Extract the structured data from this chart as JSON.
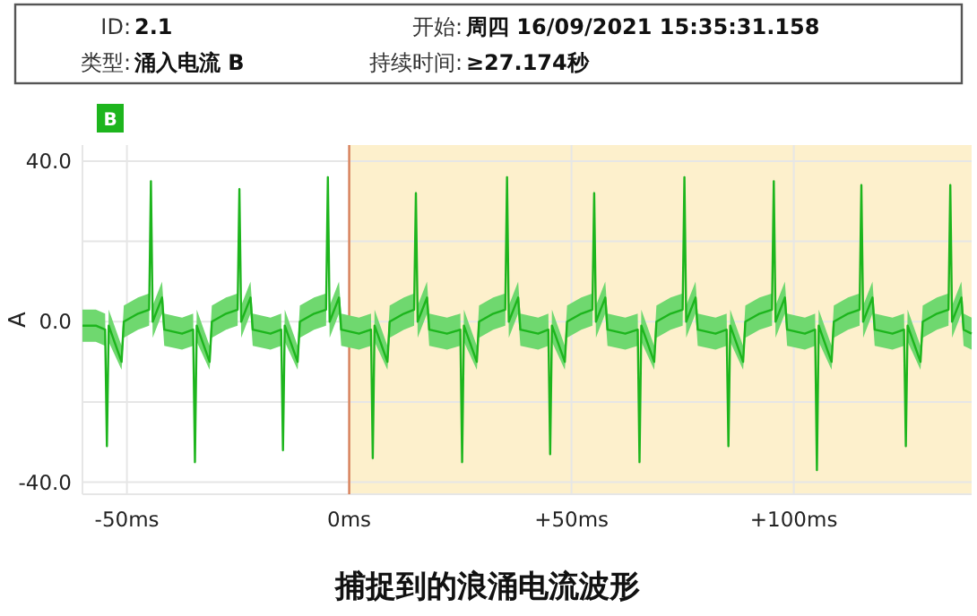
{
  "chart_data": {
    "type": "line",
    "ylabel": "A",
    "annotations": [
      "ID: **2.1**",
      "开始: **周四 16/09/2021 15:35:31.158**",
      "类型: **涌入电流 B**",
      "持续时间: **≥27.174秒**",
      "捕捉到的浪涌电流波形"
    ],
    "xlim": [
      -60,
      140
    ],
    "ylim": [
      -43,
      44
    ],
    "xticks": [
      {
        "value": -50,
        "label": "-50ms"
      },
      {
        "value": 0,
        "label": "0ms"
      },
      {
        "value": 50,
        "label": "+50ms"
      },
      {
        "value": 100,
        "label": "+100ms"
      }
    ],
    "yticks": [
      {
        "value": 40,
        "label": "40.0"
      },
      {
        "value": 20,
        "label": null
      },
      {
        "value": 0,
        "label": "0.0"
      },
      {
        "value": -20,
        "label": null
      },
      {
        "value": -40,
        "label": "-40.0"
      }
    ],
    "grid": true,
    "legend": "top left",
    "bands": [
      {
        "axis": "x",
        "from": 0,
        "to": 140,
        "color": "#fdf0cc"
      }
    ],
    "ref_lines": [
      {
        "axis": "x",
        "value": 0,
        "color": "#d9805a"
      }
    ],
    "x": [
      -60,
      -57,
      -54.9,
      -54.5,
      -54.1,
      -51.2,
      -50.7,
      -47.5,
      -45.0,
      -44.6,
      -44.2,
      -42.1,
      -41.6,
      -37.6,
      -35.1,
      -34.7,
      -34.3,
      -31.4,
      -30.9,
      -27.7,
      -25.1,
      -24.7,
      -24.3,
      -22.2,
      -21.7,
      -17.7,
      -15.3,
      -14.9,
      -14.5,
      -11.6,
      -11.1,
      -7.9,
      -5.2,
      -4.8,
      -4.4,
      -2.3,
      -1.8,
      2.2,
      4.9,
      5.3,
      5.7,
      8.6,
      9.1,
      12.3,
      14.6,
      15.0,
      15.4,
      17.5,
      18.0,
      22.0,
      25.0,
      25.4,
      25.8,
      28.7,
      29.2,
      32.4,
      35.1,
      35.5,
      35.9,
      38.0,
      38.5,
      42.5,
      44.8,
      45.2,
      45.6,
      48.5,
      49.0,
      52.2,
      54.7,
      55.1,
      55.5,
      57.6,
      58.1,
      62.1,
      64.9,
      65.3,
      65.7,
      68.6,
      69.1,
      72.3,
      75.0,
      75.4,
      75.8,
      77.9,
      78.4,
      82.4,
      84.9,
      85.3,
      85.7,
      88.6,
      89.1,
      92.3,
      95.1,
      95.5,
      95.9,
      98.0,
      98.5,
      102.5,
      104.8,
      105.2,
      105.6,
      108.5,
      109.0,
      112.2,
      114.8,
      115.2,
      115.6,
      117.7,
      118.2,
      122.2,
      124.8,
      125.2,
      125.6,
      128.5,
      129.0,
      132.2,
      134.8,
      135.2,
      135.6,
      137.7,
      138.2,
      140
    ],
    "series": [
      {
        "name": "B",
        "color": "#1db51d",
        "values": [
          -1,
          -1,
          -2,
          -31,
          -1,
          -10,
          0,
          2,
          3,
          35,
          0,
          6,
          -2,
          -3,
          -2,
          -35,
          -1,
          -10,
          0,
          2,
          3,
          33,
          0,
          6,
          -2,
          -3,
          -2,
          -32,
          -1,
          -10,
          0,
          2,
          3,
          36,
          0,
          6,
          -2,
          -3,
          -2,
          -34,
          -1,
          -10,
          0,
          2,
          3,
          32,
          0,
          6,
          -2,
          -3,
          -2,
          -35,
          -1,
          -10,
          0,
          2,
          3,
          36,
          0,
          6,
          -2,
          -3,
          -2,
          -33,
          -1,
          -10,
          0,
          2,
          3,
          32,
          0,
          6,
          -2,
          -3,
          -2,
          -35,
          -1,
          -10,
          0,
          2,
          3,
          36,
          0,
          6,
          -2,
          -3,
          -2,
          -31,
          -1,
          -10,
          0,
          2,
          3,
          35,
          0,
          6,
          -2,
          -3,
          -2,
          -37,
          -1,
          -10,
          0,
          2,
          3,
          34,
          0,
          6,
          -2,
          -3,
          -2,
          -31,
          -1,
          -10,
          0,
          2,
          3,
          34,
          0,
          6,
          -2,
          -3
        ],
        "lower": [
          -5,
          -5,
          -6,
          -32,
          -5,
          -12,
          -4,
          -2,
          -1,
          34,
          -4,
          2,
          -6,
          -7,
          -6,
          -36,
          -5,
          -12,
          -4,
          -2,
          -1,
          32,
          -4,
          2,
          -6,
          -7,
          -6,
          -33,
          -5,
          -12,
          -4,
          -2,
          -1,
          35,
          -4,
          2,
          -6,
          -7,
          -6,
          -35,
          -5,
          -12,
          -4,
          -2,
          -1,
          31,
          -4,
          2,
          -6,
          -7,
          -6,
          -36,
          -5,
          -12,
          -4,
          -2,
          -1,
          35,
          -4,
          2,
          -6,
          -7,
          -6,
          -34,
          -5,
          -12,
          -4,
          -2,
          -1,
          31,
          -4,
          2,
          -6,
          -7,
          -6,
          -36,
          -5,
          -12,
          -4,
          -2,
          -1,
          35,
          -4,
          2,
          -6,
          -7,
          -6,
          -32,
          -5,
          -12,
          -4,
          -2,
          -1,
          34,
          -4,
          2,
          -6,
          -7,
          -6,
          -38,
          -5,
          -12,
          -4,
          -2,
          -1,
          33,
          -4,
          2,
          -6,
          -7,
          -6,
          -32,
          -5,
          -12,
          -4,
          -2,
          -1,
          33,
          -4,
          2,
          -6,
          -7
        ],
        "upper": [
          3,
          3,
          2,
          -30,
          3,
          -6,
          4,
          6,
          7,
          36,
          4,
          10,
          2,
          1,
          2,
          -34,
          3,
          -6,
          4,
          6,
          7,
          34,
          4,
          10,
          2,
          1,
          2,
          -31,
          3,
          -6,
          4,
          6,
          7,
          37,
          4,
          10,
          2,
          1,
          2,
          -33,
          3,
          -6,
          4,
          6,
          7,
          33,
          4,
          10,
          2,
          1,
          2,
          -34,
          3,
          -6,
          4,
          6,
          7,
          37,
          4,
          10,
          2,
          1,
          2,
          -32,
          3,
          -6,
          4,
          6,
          7,
          33,
          4,
          10,
          2,
          1,
          2,
          -34,
          3,
          -6,
          4,
          6,
          7,
          37,
          4,
          10,
          2,
          1,
          2,
          -30,
          3,
          -6,
          4,
          6,
          7,
          36,
          4,
          10,
          2,
          1,
          2,
          -36,
          3,
          -6,
          4,
          6,
          7,
          35,
          4,
          10,
          2,
          1,
          2,
          -30,
          3,
          -6,
          4,
          6,
          7,
          35,
          4,
          10,
          2,
          1
        ]
      }
    ]
  }
}
